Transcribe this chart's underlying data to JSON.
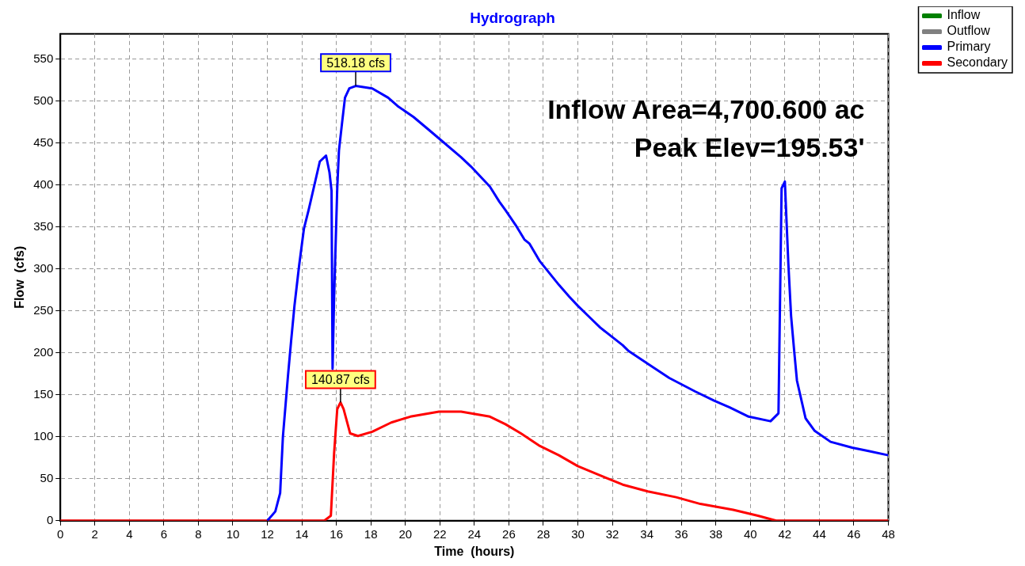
{
  "chart_data": {
    "type": "line",
    "title": "Hydrograph",
    "xlabel": "Time  (hours)",
    "ylabel": "Flow  (cfs)",
    "xlim": [
      0,
      48
    ],
    "xticks": [
      0,
      2,
      4,
      6,
      8,
      10,
      12,
      14,
      16,
      18,
      20,
      22,
      24,
      26,
      28,
      30,
      32,
      34,
      36,
      38,
      40,
      42,
      44,
      46,
      48
    ],
    "ylim": [
      0,
      580
    ],
    "yticks": [
      0,
      50,
      100,
      150,
      200,
      250,
      300,
      350,
      400,
      450,
      500,
      550
    ],
    "grid": true,
    "legend": "right",
    "marker": "none",
    "line_style": "solid",
    "series": [
      {
        "name": "Inflow",
        "color": "#008000"
      },
      {
        "name": "Outflow",
        "color": "#808080"
      },
      {
        "name": "Primary",
        "color": "#0000ff",
        "x": [
          12.0,
          12.46,
          12.74,
          12.9,
          13.2,
          13.38,
          13.57,
          13.84,
          14.12,
          14.39,
          15.04,
          15.4,
          15.6,
          15.72,
          15.78,
          15.87,
          16.05,
          16.15,
          16.33,
          16.5,
          16.75,
          17.12,
          18.08,
          19.0,
          19.55,
          20.47,
          21.4,
          23.23,
          23.8,
          24.9,
          25.45,
          25.8,
          26.4,
          26.9,
          27.2,
          27.8,
          28.9,
          29.5,
          30.0,
          30.75,
          31.3,
          32.6,
          32.95,
          34.05,
          35.3,
          36.8,
          37.9,
          38.8,
          39.9,
          41.17,
          41.63,
          41.81,
          42.0,
          42.2,
          42.36,
          42.55,
          42.7,
          43.2,
          43.73,
          44.65,
          45.9,
          46.85,
          48.0
        ],
        "values": [
          0,
          11,
          33,
          100,
          174,
          215,
          256,
          304,
          348,
          370,
          428,
          435,
          415,
          393,
          181,
          267,
          396,
          441,
          474,
          504,
          515,
          518,
          515,
          504,
          494,
          481,
          465,
          433,
          422,
          398,
          380,
          370,
          352,
          335,
          330,
          309,
          281,
          267,
          256,
          241,
          230,
          209,
          202,
          187,
          170,
          154,
          143,
          135,
          124,
          118.5,
          128,
          396,
          404,
          307,
          244,
          200,
          167,
          122,
          107,
          94,
          87,
          83,
          78
        ]
      },
      {
        "name": "Secondary",
        "color": "#ff0000",
        "x": [
          0,
          15.3,
          15.68,
          15.87,
          16.05,
          16.24,
          16.42,
          16.8,
          17.25,
          18.08,
          19.18,
          20.29,
          21.95,
          23.23,
          24.9,
          25.8,
          26.7,
          27.8,
          28.9,
          30.0,
          31.3,
          32.6,
          34.05,
          35.7,
          37.1,
          39.0,
          40.44,
          41.5,
          48
        ],
        "values": [
          0,
          0,
          6,
          81,
          133,
          141,
          133,
          104,
          101,
          106,
          117,
          124,
          130,
          130,
          124,
          115,
          104,
          89,
          78,
          65,
          54,
          43,
          35,
          28,
          20,
          13,
          6,
          0,
          0
        ]
      }
    ],
    "annotations": [
      {
        "text": "518.18 cfs",
        "x": 17.12,
        "y": 518.18
      },
      {
        "text": "140.87 cfs",
        "x": 16.24,
        "y": 140.87
      },
      "Inflow Area=4,700.600 ac",
      "Peak Elev=195.53'"
    ]
  }
}
